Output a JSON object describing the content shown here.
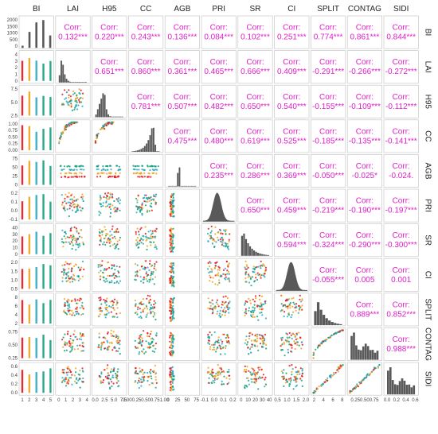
{
  "chart_data": {
    "type": "scatter-matrix",
    "title": "",
    "variables": [
      "BI",
      "LAI",
      "H95",
      "CC",
      "AGB",
      "PRI",
      "SR",
      "CI",
      "SPLIT",
      "CONTAG",
      "SIDI"
    ],
    "corr_label": "Corr:",
    "correlations": [
      [
        "0.132***",
        "0.220***",
        "0.243***",
        "0.136***",
        "0.084***",
        "0.102***",
        "0.251***",
        "0.774***",
        "0.861***",
        "0.844***"
      ],
      [
        "0.651***",
        "0.860***",
        "0.361***",
        "0.465***",
        "0.666***",
        "0.409***",
        "-0.291***",
        "-0.266***",
        "-0.272***"
      ],
      [
        "0.781***",
        "0.507***",
        "0.482***",
        "0.650***",
        "0.540***",
        "-0.155***",
        "-0.109***",
        "-0.112***"
      ],
      [
        "0.475***",
        "0.480***",
        "0.619***",
        "0.525***",
        "-0.185***",
        "-0.135***",
        "-0.141***"
      ],
      [
        "0.235***",
        "0.286***",
        "0.369***",
        "-0.050***",
        "-0.025*",
        "-0.024."
      ],
      [
        "0.650***",
        "0.459***",
        "-0.219***",
        "-0.190***",
        "-0.197***"
      ],
      [
        "0.594***",
        "-0.324***",
        "-0.290***",
        "-0.300***"
      ],
      [
        "-0.055***",
        "0.005",
        "0.001"
      ],
      [
        "0.889***",
        "0.852***"
      ],
      [
        "0.988***"
      ]
    ],
    "y_ticks": [
      [
        "0",
        "500",
        "1000",
        "1500",
        "2000"
      ],
      [
        "0",
        "1",
        "2",
        "3",
        "4"
      ],
      [
        "2.5",
        "5.0",
        "7.5"
      ],
      [
        "0.00",
        "0.25",
        "0.50",
        "0.75",
        "1.00"
      ],
      [
        "0",
        "25",
        "50",
        "75"
      ],
      [
        "-0.1",
        "0.0",
        "0.1",
        "0.2"
      ],
      [
        "0",
        "10",
        "20",
        "30",
        "40"
      ],
      [
        "0.5",
        "1.0",
        "1.5",
        "2.0"
      ],
      [
        "2",
        "4",
        "6",
        "8"
      ],
      [
        "0.25",
        "0.50",
        "0.75"
      ],
      [
        "0.0",
        "0.2",
        "0.4",
        "0.6"
      ]
    ],
    "x_ticks": [
      [
        "1",
        "2",
        "3",
        "4",
        "5"
      ],
      [
        "0",
        "1",
        "2",
        "3",
        "4"
      ],
      [
        "0.0",
        "2.5",
        "5.0",
        "7.5"
      ],
      [
        "0.000.250.500.751.00"
      ],
      [
        "0",
        "25",
        "50",
        "75"
      ],
      [
        "-0.1",
        "0.0",
        "0.1",
        "0.2"
      ],
      [
        "0",
        "10",
        "20",
        "30",
        "40"
      ],
      [
        "0.5",
        "1.0",
        "1.5",
        "2.0"
      ],
      [
        "2",
        "4",
        "6",
        "8"
      ],
      [
        "0.250.500.75"
      ],
      [
        "0.0",
        "0.2",
        "0.4",
        "0.6"
      ]
    ],
    "bi_histogram": [
      180,
      1350,
      2150,
      2350,
      1050
    ],
    "group_colors": [
      "#e8151b",
      "#f0a21a",
      "#2aa9c7",
      "#12a07c"
    ],
    "histogram_color": "#595959"
  }
}
